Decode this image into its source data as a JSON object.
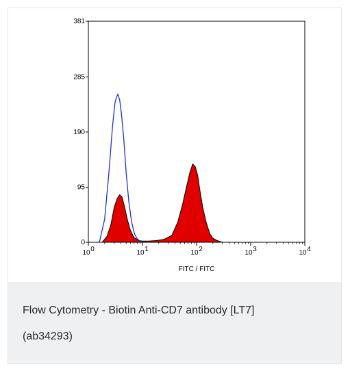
{
  "chart_data": {
    "type": "area",
    "xlabel": "FITC / FITC",
    "ylabel": "",
    "x_scale": "log",
    "xlim": [
      1,
      10000
    ],
    "ylim": [
      0,
      381
    ],
    "y_ticks": [
      0,
      95,
      190,
      285,
      381
    ],
    "y_tick_labels": [
      "0",
      "95",
      "190",
      "285",
      "381"
    ],
    "x_ticks": [
      1,
      10,
      100,
      1000,
      10000
    ],
    "x_tick_base": [
      "10",
      "10",
      "10",
      "10",
      "10"
    ],
    "x_tick_exp": [
      "0",
      "1",
      "2",
      "3",
      "4"
    ],
    "grid": false,
    "series": [
      {
        "color": "#1f2fd0",
        "style": "line",
        "x": [
          1.6,
          2.0,
          2.4,
          2.8,
          3.1,
          3.3,
          3.5,
          3.8,
          4.1,
          4.5,
          5.0,
          5.6,
          6.3,
          7.1,
          8.0,
          9.0,
          10.0
        ],
        "y": [
          0,
          40,
          120,
          200,
          240,
          250,
          255,
          245,
          220,
          180,
          120,
          70,
          35,
          15,
          6,
          2,
          0
        ]
      },
      {
        "color": "#e00000",
        "style": "filled",
        "x": [
          1.8,
          2.2,
          2.6,
          3.0,
          3.4,
          3.8,
          4.2,
          4.7,
          5.3,
          6.0,
          7.0,
          8.5,
          10,
          13,
          18,
          25,
          35,
          45,
          55,
          65,
          75,
          85,
          95,
          105,
          115,
          130,
          150,
          175,
          200,
          240,
          300
        ],
        "y": [
          0,
          10,
          30,
          60,
          75,
          82,
          78,
          60,
          38,
          20,
          8,
          3,
          2,
          2,
          3,
          5,
          12,
          35,
          65,
          95,
          120,
          135,
          130,
          115,
          90,
          60,
          35,
          15,
          7,
          3,
          0
        ]
      }
    ]
  },
  "caption": {
    "line1": "Flow Cytometry - Biotin Anti-CD7 antibody [LT7]",
    "line2": "(ab34293)"
  },
  "colors": {
    "caption_bg": "#eef0f1",
    "border": "#e2e5e7"
  }
}
